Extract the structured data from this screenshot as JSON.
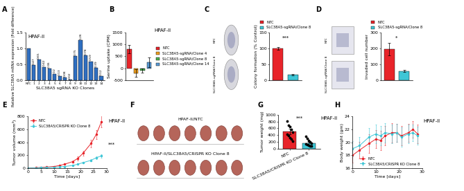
{
  "chart_data": [
    {
      "panel": "A",
      "type": "bar",
      "categories": [
        "NTC",
        "1",
        "2",
        "3",
        "4",
        "5",
        "6",
        "7",
        "8",
        "9",
        "10",
        "11",
        "12",
        "13",
        "14"
      ],
      "values": [
        1.0,
        0.47,
        0.65,
        0.42,
        0.36,
        0.2,
        0.13,
        0.08,
        0.02,
        0.75,
        1.26,
        0.78,
        0.59,
        0.39,
        0.12
      ],
      "value_labels": [
        null,
        "0.47",
        "0.65",
        "0.42",
        "0.36",
        "0.2",
        "0.13",
        "0.08",
        "0.02",
        "0.75",
        "1.26",
        "0.78",
        "0.59",
        "0.39",
        "0.12"
      ],
      "data_labels": true,
      "color": "#2f6fc1",
      "x_label": "SLC38A5 sgRNA KO Clones",
      "y_label": "Relative SLC38A5 mRNA expression (Fold difference)",
      "annotations": [
        "HPAF-II"
      ],
      "ylim": [
        0,
        1.5
      ],
      "yticks": [
        {
          "value": 0,
          "label": "0.0"
        },
        {
          "value": 0.5,
          "label": "0.5"
        },
        {
          "value": 1.0,
          "label": "1.0"
        },
        {
          "value": 1.5,
          "label": "1.5"
        }
      ]
    },
    {
      "panel": "B",
      "type": "bar",
      "categories": [
        "NTC",
        "SLC38A5-sgRNA/Clone 4",
        "SLC38A5-sgRNA/Clone 8",
        "SLC38A5-sgRNA/Clone 14"
      ],
      "values": [
        800,
        -200,
        -100,
        250
      ],
      "errors": [
        180,
        150,
        80,
        200
      ],
      "colors": [
        "#e8242a",
        "#f0a020",
        "#4caf50",
        "#5b9bd5"
      ],
      "y_label": "Serine uptake (CPM)",
      "annotations": [
        "HPAF-II"
      ],
      "legend": "right",
      "tick_labels": "y",
      "ylim": [
        -500,
        1500
      ],
      "yticks": [
        -500,
        0,
        500,
        1000,
        1500
      ]
    },
    {
      "panel": "C",
      "type": "bar",
      "categories": [
        "NTC",
        "SLC38A5-sgRNA/Clone 8"
      ],
      "values": [
        100,
        17
      ],
      "errors": [
        5,
        2
      ],
      "colors": [
        "#e8242a",
        "#3ec6d6"
      ],
      "images": [
        "NTC",
        "SLC38A5-sgRNA/Clone 8"
      ],
      "y_label": "Colony formation (% Control)",
      "annotations": [
        "***"
      ],
      "legend": "top",
      "tick_labels": "y",
      "ylim": [
        0,
        150
      ],
      "yticks": [
        0,
        50,
        100,
        150
      ]
    },
    {
      "panel": "D",
      "type": "bar",
      "categories": [
        "NTC",
        "SLC38A5-sgRNA/Clone 8"
      ],
      "values": [
        195,
        58
      ],
      "errors": [
        40,
        5
      ],
      "colors": [
        "#e8242a",
        "#3ec6d6"
      ],
      "images": [
        "NTC",
        "SLC38A5-sgRNA/Clone 8"
      ],
      "y_label": "Invaded cell number",
      "annotations": [
        "*"
      ],
      "legend": "top",
      "tick_labels": "y",
      "ylim": [
        0,
        300
      ],
      "yticks": [
        0,
        100,
        200,
        300
      ]
    },
    {
      "panel": "E",
      "type": "line",
      "x_label": "Time [days]",
      "y_label": "Tumor volume (mm³)",
      "annotations": [
        "HPAF-II",
        "***"
      ],
      "legend": "upper left",
      "x": [
        0,
        3,
        5,
        7,
        10,
        12,
        14,
        17,
        19,
        21,
        24,
        26,
        28
      ],
      "series": [
        {
          "name": "NTC",
          "color": "#e8242a",
          "marker": "o",
          "values": [
            0,
            5,
            10,
            15,
            25,
            40,
            60,
            100,
            150,
            230,
            380,
            520,
            720
          ],
          "errors": [
            0,
            2,
            3,
            4,
            6,
            8,
            12,
            20,
            30,
            40,
            60,
            70,
            90
          ]
        },
        {
          "name": "SLC38A5/CRISPR KO Clone 8",
          "color": "#3ec6d6",
          "marker": "o",
          "values": [
            0,
            3,
            5,
            8,
            12,
            18,
            25,
            40,
            60,
            85,
            120,
            160,
            190
          ],
          "errors": [
            0,
            1,
            2,
            3,
            4,
            5,
            6,
            8,
            10,
            14,
            18,
            22,
            25
          ]
        }
      ],
      "xlim": [
        0,
        30
      ],
      "xticks": [
        0,
        5,
        10,
        15,
        20,
        25,
        30
      ],
      "ylim": [
        0,
        800
      ],
      "yticks": [
        0,
        200,
        400,
        600,
        800
      ]
    },
    {
      "panel": "F",
      "type": "image",
      "labels": [
        "HPAF-II/NTC",
        "HPAF-II/SLC38A5/CRISPR KO Clone 8"
      ]
    },
    {
      "panel": "G",
      "type": "bar",
      "categories": [
        "NTC",
        "SLC38A5/CRISPR KO Clone 8"
      ],
      "values": [
        500,
        175
      ],
      "errors": [
        80,
        40
      ],
      "colors": [
        "#e8242a",
        "#3ec6d6"
      ],
      "points": [
        [
          820,
          700,
          650,
          560,
          480,
          420,
          380,
          330,
          280,
          230
        ],
        [
          360,
          300,
          250,
          200,
          170,
          150,
          130,
          110,
          90,
          80
        ]
      ],
      "y_label": "Tumor weight (mg)",
      "annotations": [
        "***",
        "HPAF-II"
      ],
      "ylim": [
        0,
        1000
      ],
      "yticks": [
        0,
        200,
        400,
        600,
        800,
        1000
      ]
    },
    {
      "panel": "H",
      "type": "line",
      "x_label": "Time [days]",
      "y_label": "Body weight (gm)",
      "annotations": [
        "HPAF-II"
      ],
      "legend": "lower right",
      "x": [
        0,
        3,
        7,
        10,
        12,
        14,
        17,
        19,
        21,
        24,
        26,
        28
      ],
      "series": [
        {
          "name": "NTC",
          "color": "#e8242a",
          "marker": "o",
          "values": [
            18.0,
            18.8,
            19.8,
            20.5,
            20.3,
            21.0,
            21.5,
            21.5,
            21.0,
            21.5,
            22.0,
            21.3
          ],
          "errors": [
            1.2,
            1.3,
            1.4,
            1.4,
            1.5,
            1.5,
            1.5,
            1.4,
            1.5,
            1.4,
            1.3,
            1.4
          ]
        },
        {
          "name": "SLC38A5/CRISPR KO Clone 8",
          "color": "#3ec6d6",
          "marker": "o",
          "values": [
            19.0,
            19.5,
            20.8,
            21.3,
            21.0,
            21.5,
            21.3,
            21.5,
            20.8,
            21.3,
            21.5,
            21.0
          ],
          "errors": [
            1.2,
            1.3,
            1.4,
            1.4,
            1.5,
            1.5,
            1.5,
            1.4,
            1.5,
            1.4,
            1.3,
            1.4
          ]
        }
      ],
      "xlim": [
        0,
        30
      ],
      "xticks": [
        0,
        10,
        20,
        30
      ],
      "ylim": [
        16,
        24
      ],
      "yticks": [
        16,
        18,
        20,
        22,
        24
      ]
    }
  ]
}
